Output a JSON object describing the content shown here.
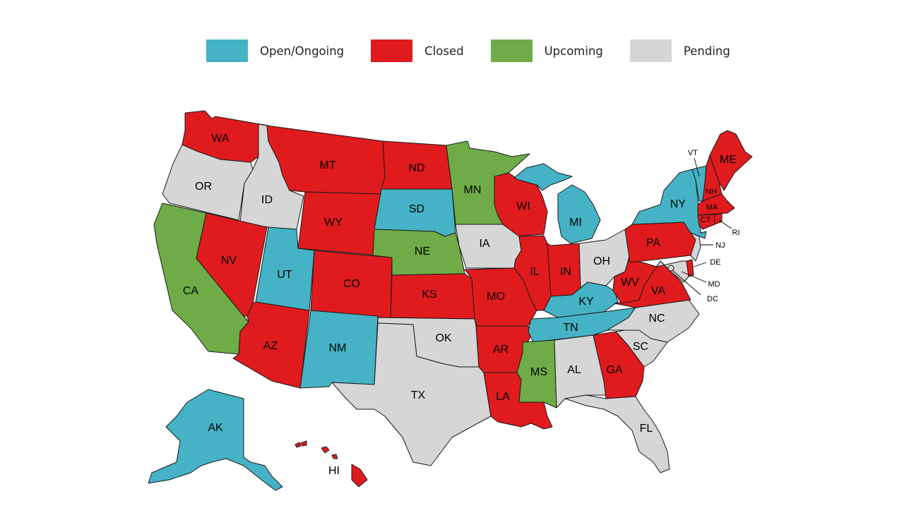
{
  "legend": [
    {
      "key": "open",
      "label": "Open/Ongoing",
      "color": "#45b3c5"
    },
    {
      "key": "closed",
      "label": "Closed",
      "color": "#e01b1e"
    },
    {
      "key": "upcoming",
      "label": "Upcoming",
      "color": "#6fac47"
    },
    {
      "key": "pending",
      "label": "Pending",
      "color": "#d6d6d6"
    }
  ],
  "states": {
    "WA": {
      "label": "WA",
      "status": "closed"
    },
    "OR": {
      "label": "OR",
      "status": "pending"
    },
    "CA": {
      "label": "CA",
      "status": "upcoming"
    },
    "ID": {
      "label": "ID",
      "status": "pending"
    },
    "NV": {
      "label": "NV",
      "status": "closed"
    },
    "MT": {
      "label": "MT",
      "status": "closed"
    },
    "WY": {
      "label": "WY",
      "status": "closed"
    },
    "UT": {
      "label": "UT",
      "status": "open"
    },
    "AZ": {
      "label": "AZ",
      "status": "closed"
    },
    "CO": {
      "label": "CO",
      "status": "closed"
    },
    "NM": {
      "label": "NM",
      "status": "open"
    },
    "ND": {
      "label": "ND",
      "status": "closed"
    },
    "SD": {
      "label": "SD",
      "status": "open"
    },
    "NE": {
      "label": "NE",
      "status": "upcoming"
    },
    "KS": {
      "label": "KS",
      "status": "closed"
    },
    "OK": {
      "label": "OK",
      "status": "pending"
    },
    "TX": {
      "label": "TX",
      "status": "pending"
    },
    "MN": {
      "label": "MN",
      "status": "upcoming"
    },
    "IA": {
      "label": "IA",
      "status": "pending"
    },
    "MO": {
      "label": "MO",
      "status": "closed"
    },
    "AR": {
      "label": "AR",
      "status": "closed"
    },
    "LA": {
      "label": "LA",
      "status": "closed"
    },
    "WI": {
      "label": "WI",
      "status": "closed"
    },
    "IL": {
      "label": "IL",
      "status": "closed"
    },
    "MI": {
      "label": "MI",
      "status": "open"
    },
    "IN": {
      "label": "IN",
      "status": "closed"
    },
    "OH": {
      "label": "OH",
      "status": "pending"
    },
    "KY": {
      "label": "KY",
      "status": "open"
    },
    "TN": {
      "label": "TN",
      "status": "open"
    },
    "MS": {
      "label": "MS",
      "status": "upcoming"
    },
    "AL": {
      "label": "AL",
      "status": "pending"
    },
    "GA": {
      "label": "GA",
      "status": "closed"
    },
    "FL": {
      "label": "FL",
      "status": "pending"
    },
    "SC": {
      "label": "SC",
      "status": "pending"
    },
    "NC": {
      "label": "NC",
      "status": "pending"
    },
    "VA": {
      "label": "VA",
      "status": "closed"
    },
    "WV": {
      "label": "WV",
      "status": "closed"
    },
    "PA": {
      "label": "PA",
      "status": "closed"
    },
    "NY": {
      "label": "NY",
      "status": "open"
    },
    "VT": {
      "label": "VT",
      "status": "open"
    },
    "NH": {
      "label": "NH",
      "status": "closed"
    },
    "ME": {
      "label": "ME",
      "status": "closed"
    },
    "MA": {
      "label": "MA",
      "status": "closed"
    },
    "CT": {
      "label": "CT",
      "status": "closed"
    },
    "RI": {
      "label": "RI",
      "status": "closed"
    },
    "NJ": {
      "label": "NJ",
      "status": "pending"
    },
    "DE": {
      "label": "DE",
      "status": "closed"
    },
    "MD": {
      "label": "MD",
      "status": "pending"
    },
    "DC": {
      "label": "DC",
      "status": "pending"
    },
    "AK": {
      "label": "AK",
      "status": "open"
    },
    "HI": {
      "label": "HI",
      "status": "closed"
    }
  }
}
